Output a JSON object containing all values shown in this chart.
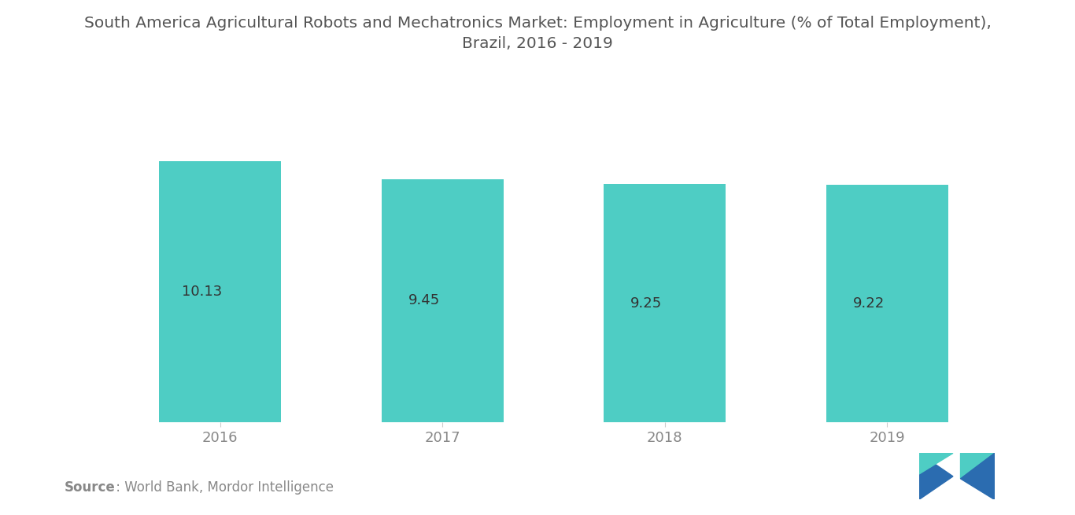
{
  "title_line1": "South America Agricultural Robots and Mechatronics Market: Employment in Agriculture (% of Total Employment),",
  "title_line2": "Brazil, 2016 - 2019",
  "categories": [
    "2016",
    "2017",
    "2018",
    "2019"
  ],
  "values": [
    10.13,
    9.45,
    9.25,
    9.22
  ],
  "bar_color": "#4ECDC4",
  "value_labels": [
    "10.13",
    "9.45",
    "9.25",
    "9.22"
  ],
  "source_bold": "Source",
  "source_rest": " : World Bank, Mordor Intelligence",
  "ylim": [
    0,
    12
  ],
  "title_fontsize": 14.5,
  "label_fontsize": 13,
  "tick_fontsize": 13,
  "source_fontsize": 12,
  "bar_width": 0.55,
  "background_color": "#ffffff",
  "text_color": "#888888",
  "title_color": "#555555",
  "value_text_color": "#333333",
  "logo_teal": "#4ECDC4",
  "logo_blue": "#2B6CB0"
}
